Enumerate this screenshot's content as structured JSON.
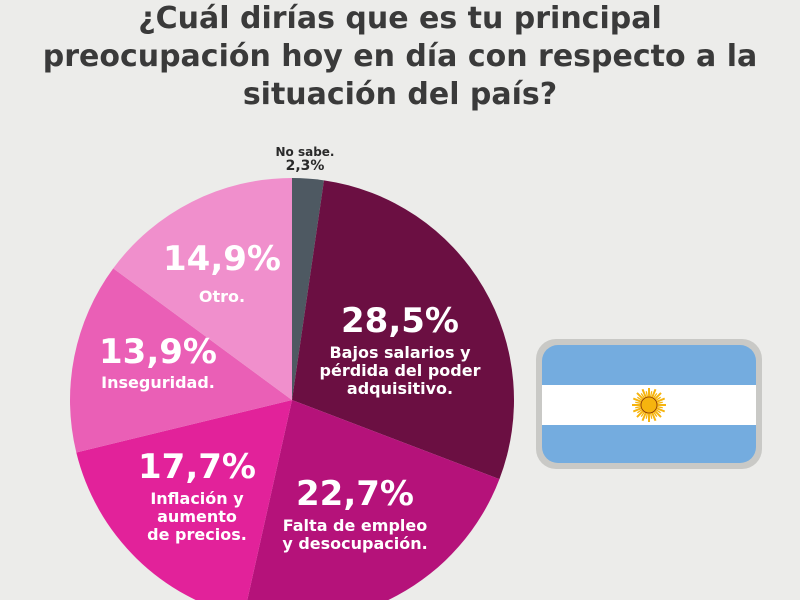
{
  "title": "¿Cuál dirías que es tu principal\npreocupación hoy en día con respecto a la\nsituación del país?",
  "colors": {
    "background": "#ececea",
    "flag_blue": "#74acdf",
    "flag_white": "#ffffff",
    "sun": "#f6b40e"
  },
  "chart_data": {
    "type": "pie",
    "title": "¿Cuál dirías que es tu principal preocupación hoy en día con respecto a la situación del país?",
    "slices": [
      {
        "label": "No sabe.",
        "value": 2.3,
        "value_label": "2,3%",
        "color": "#4e5962"
      },
      {
        "label": "Bajos salarios y\npérdida del poder\nadquisitivo.",
        "value": 28.5,
        "value_label": "28,5%",
        "color": "#6b0f42"
      },
      {
        "label": "Falta de empleo\ny desocupación.",
        "value": 22.7,
        "value_label": "22,7%",
        "color": "#b5127a"
      },
      {
        "label": "Inflación y\naumento\nde precios.",
        "value": 17.7,
        "value_label": "17,7%",
        "color": "#e2229a"
      },
      {
        "label": "Inseguridad.",
        "value": 13.9,
        "value_label": "13,9%",
        "color": "#ea5fb6"
      },
      {
        "label": "Otro.",
        "value": 14.9,
        "value_label": "14,9%",
        "color": "#f08fcc"
      }
    ]
  }
}
